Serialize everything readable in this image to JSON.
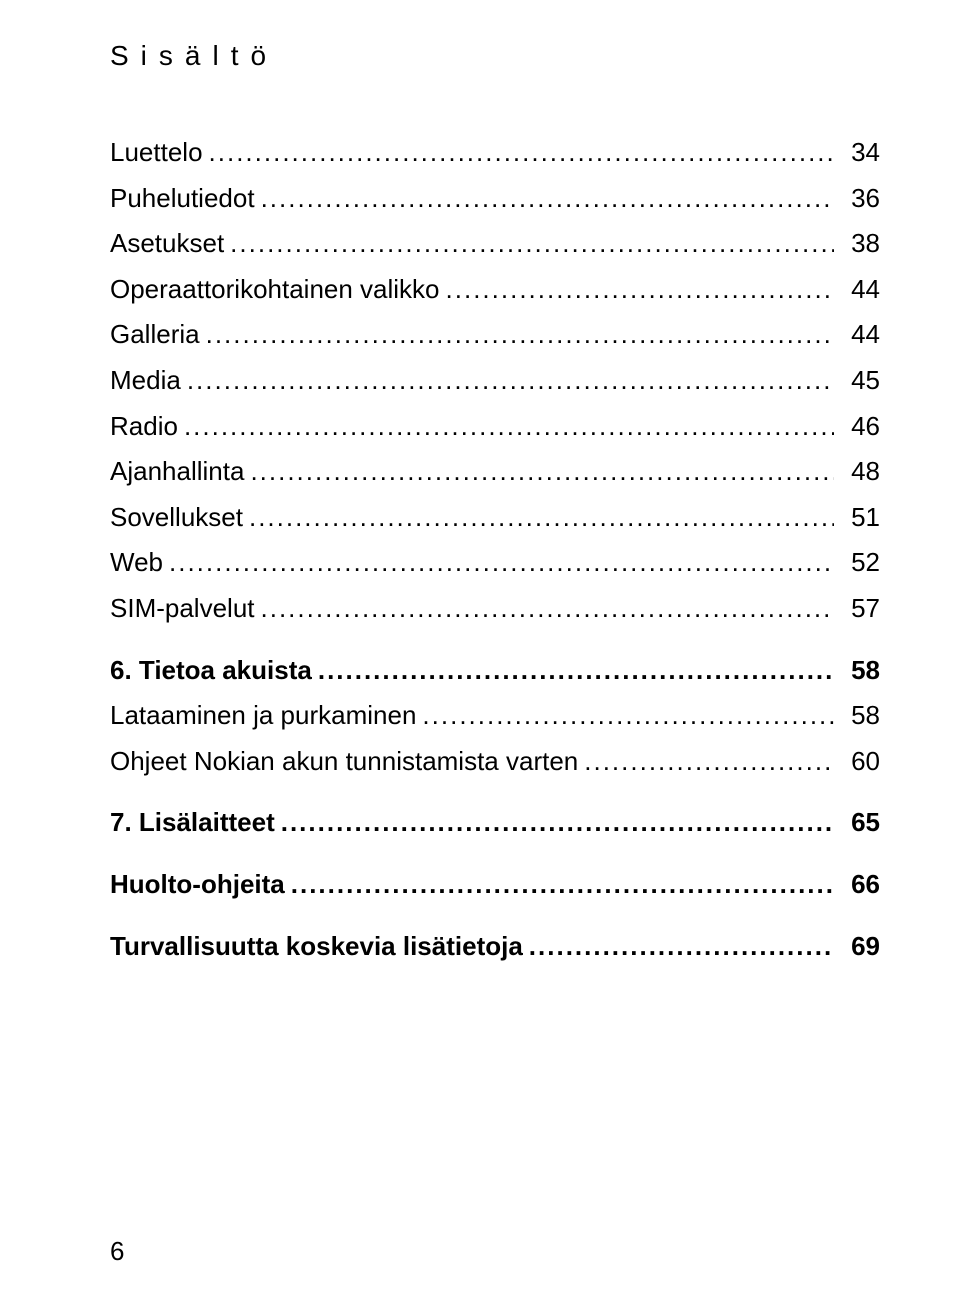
{
  "header": "Sisältö",
  "footer_page_number": "6",
  "toc": [
    {
      "label": "Luettelo",
      "page": "34",
      "section": false
    },
    {
      "label": "Puhelutiedot",
      "page": "36",
      "section": false
    },
    {
      "label": "Asetukset",
      "page": "38",
      "section": false
    },
    {
      "label": "Operaattorikohtainen valikko",
      "page": "44",
      "section": false
    },
    {
      "label": "Galleria",
      "page": "44",
      "section": false
    },
    {
      "label": "Media",
      "page": "45",
      "section": false
    },
    {
      "label": "Radio",
      "page": "46",
      "section": false
    },
    {
      "label": "Ajanhallinta",
      "page": "48",
      "section": false
    },
    {
      "label": "Sovellukset",
      "page": "51",
      "section": false
    },
    {
      "label": "Web",
      "page": "52",
      "section": false
    },
    {
      "label": "SIM-palvelut",
      "page": "57",
      "section": false
    },
    {
      "label": "6. Tietoa akuista",
      "page": "58",
      "section": true
    },
    {
      "label": "Lataaminen ja purkaminen",
      "page": "58",
      "section": false
    },
    {
      "label": "Ohjeet Nokian akun tunnistamista varten",
      "page": "60",
      "section": false
    },
    {
      "label": "7. Lisälaitteet",
      "page": "65",
      "section": true
    },
    {
      "label": "Huolto-ohjeita",
      "page": "66",
      "section": true
    },
    {
      "label": "Turvallisuutta koskevia lisätietoja",
      "page": "69",
      "section": true
    }
  ]
}
